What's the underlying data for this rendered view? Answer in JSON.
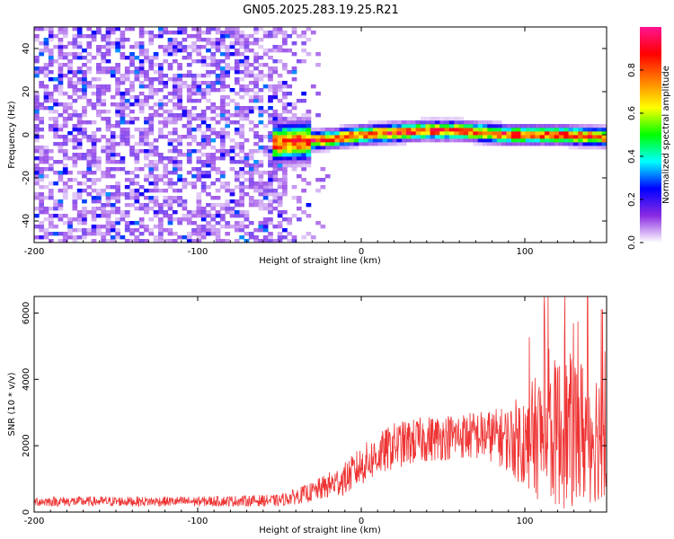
{
  "title": "GN05.2025.283.19.25.R21",
  "chart_data": [
    {
      "type": "heatmap",
      "name": "spectrogram",
      "xlabel": "Height of straight line (km)",
      "ylabel": "Frequency (Hz)",
      "xlim": [
        -200,
        150
      ],
      "ylim": [
        -50,
        50
      ],
      "xticks": [
        -200,
        -100,
        0,
        100
      ],
      "yticks": [
        -40,
        -20,
        0,
        20,
        40
      ],
      "colorbar": {
        "label": "Normalized spectral amplitude",
        "range": [
          0,
          1
        ],
        "ticks": [
          "0.0",
          "0.2",
          "0.4",
          "0.6",
          "0.8"
        ],
        "colors": [
          "#ffffff",
          "#8a2be2",
          "#0000ff",
          "#00ffff",
          "#00ff00",
          "#ffff00",
          "#ff8000",
          "#ff0000",
          "#ff1493"
        ]
      },
      "signal_band": {
        "x_start": -55,
        "x_end": 150,
        "center_freq_points": [
          [
            -55,
            -4
          ],
          [
            -20,
            -2
          ],
          [
            0,
            0
          ],
          [
            40,
            2
          ],
          [
            60,
            2
          ],
          [
            90,
            0
          ],
          [
            120,
            0
          ],
          [
            150,
            -1
          ]
        ],
        "peak_amplitude": 0.9
      },
      "noise_region": {
        "x_start": -200,
        "x_end": -20,
        "typical_amplitude": 0.15
      }
    },
    {
      "type": "line",
      "name": "snr",
      "xlabel": "Height of straight line (km)",
      "ylabel": "SNR (10 * v/v)",
      "xlim": [
        -200,
        150
      ],
      "ylim": [
        0,
        6500
      ],
      "xticks": [
        -200,
        -100,
        0,
        100
      ],
      "yticks": [
        0,
        2000,
        4000,
        6000
      ],
      "color": "#ee3333",
      "envelope": {
        "x": [
          -200,
          -100,
          -50,
          -30,
          -10,
          0,
          20,
          40,
          60,
          80,
          90,
          100,
          110,
          120,
          130,
          140,
          150
        ],
        "mean": [
          320,
          320,
          350,
          600,
          1000,
          1400,
          2000,
          2200,
          2300,
          2300,
          2200,
          2200,
          2300,
          2400,
          2400,
          2400,
          2400
        ],
        "spread": [
          150,
          150,
          180,
          300,
          500,
          600,
          700,
          700,
          700,
          800,
          1000,
          1500,
          2000,
          2300,
          2400,
          2200,
          2000
        ]
      }
    }
  ]
}
